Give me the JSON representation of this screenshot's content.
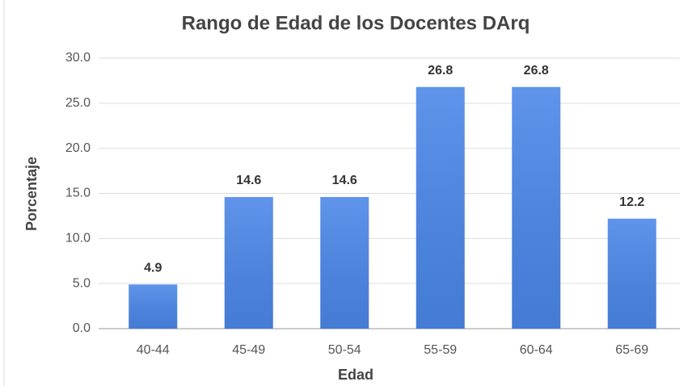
{
  "chart_data": {
    "type": "bar",
    "title": "Rango de Edad de los Docentes DArq",
    "x_label": "Edad",
    "y_label": "Porcentaje",
    "categories": [
      "40-44",
      "45-49",
      "50-54",
      "55-59",
      "60-64",
      "65-69"
    ],
    "values": [
      4.9,
      14.6,
      14.6,
      26.8,
      26.8,
      12.2
    ],
    "color": "#4a86e8",
    "ylim": [
      0,
      30
    ],
    "yticks": [
      {
        "value": 0,
        "label": "0.0"
      },
      {
        "value": 5,
        "label": "5.0"
      },
      {
        "value": 10,
        "label": "10.0"
      },
      {
        "value": 15,
        "label": "15.0"
      },
      {
        "value": 20,
        "label": "20.0"
      },
      {
        "value": 25,
        "label": "25.0"
      },
      {
        "value": 30,
        "label": "30.0"
      }
    ],
    "grid": true
  }
}
